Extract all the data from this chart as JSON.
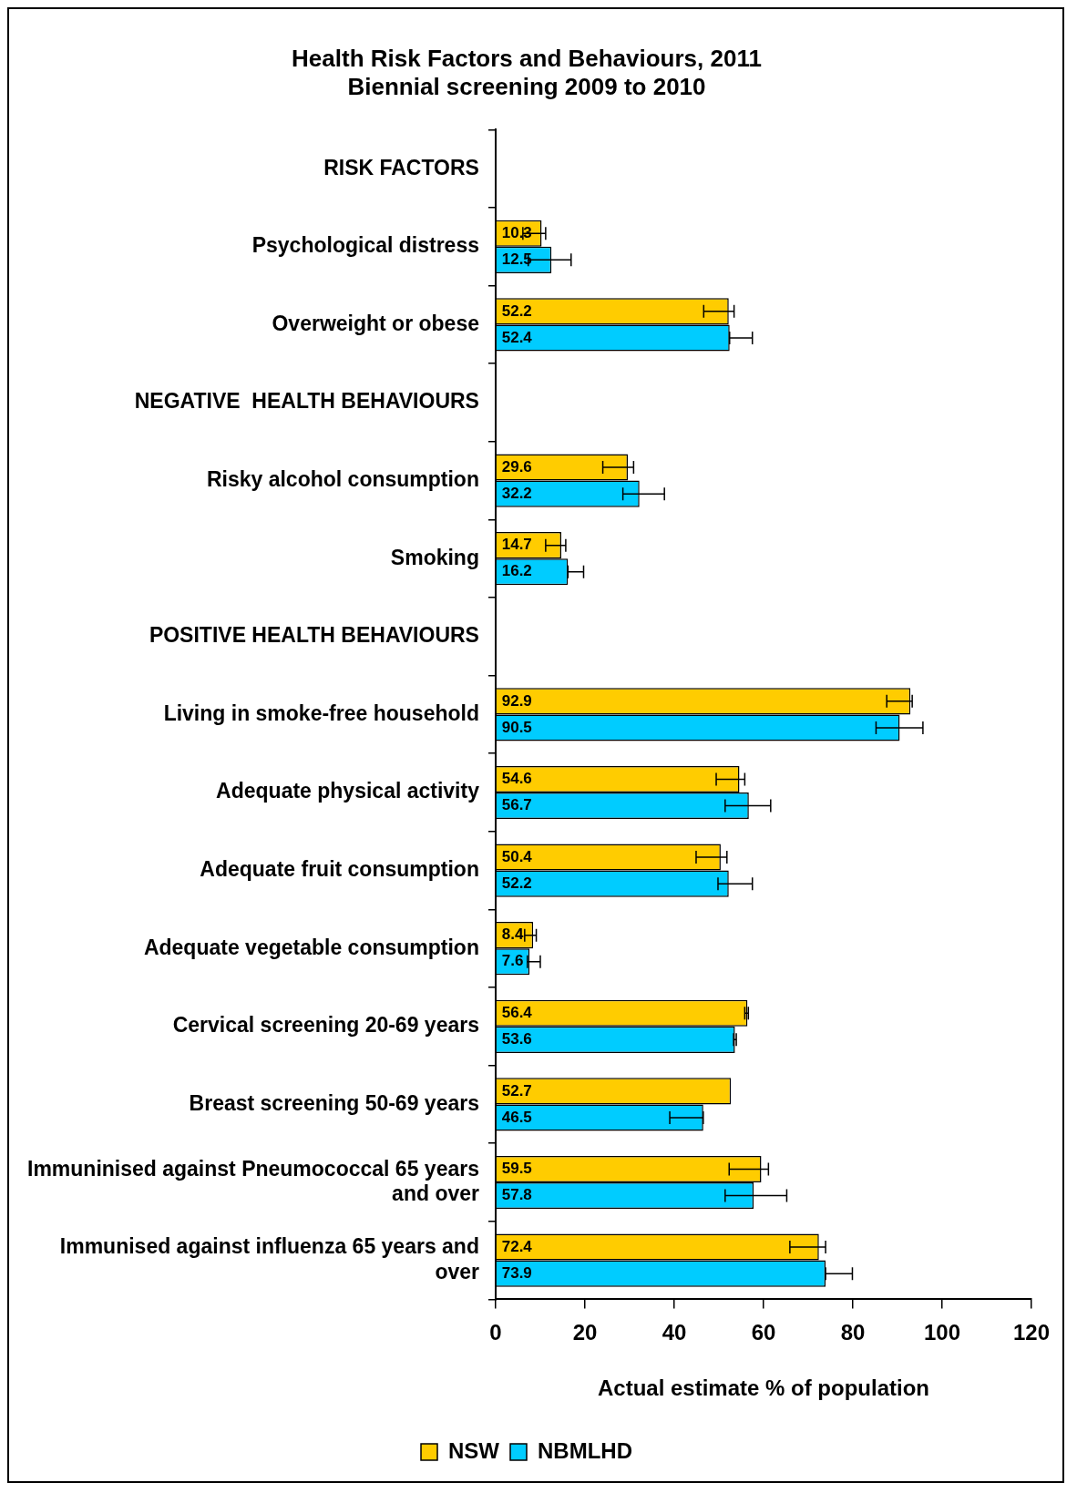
{
  "chart_data": {
    "type": "bar",
    "orientation": "horizontal",
    "title": "Health Risk Factors and Behaviours, 2011",
    "subtitle": "Biennial screening 2009 to 2010",
    "xlabel": "Actual estimate % of population",
    "categories": [
      "RISK FACTORS",
      "Psychological distress",
      "Overweight or obese",
      "NEGATIVE  HEALTH BEHAVIOURS",
      "Risky alcohol consumption",
      "Smoking",
      "POSITIVE HEALTH BEHAVIOURS",
      "Living in smoke-free household",
      "Adequate physical activity",
      "Adequate fruit consumption",
      "Adequate vegetable consumption",
      "Cervical screening 20-69 years",
      "Breast screening 50-69 years",
      "Immuninised against Pneumococcal 65 years and over",
      "Immunised against influenza 65 years and over"
    ],
    "series": [
      {
        "name": "NSW",
        "color": "#ffcc00",
        "values": [
          null,
          10.3,
          52.2,
          null,
          29.6,
          14.7,
          null,
          92.9,
          54.6,
          50.4,
          8.4,
          56.4,
          52.7,
          59.5,
          72.4
        ],
        "errors": [
          null,
          [
            6.1,
            11.2
          ],
          [
            46.6,
            53.4
          ],
          null,
          [
            24.0,
            30.9
          ],
          [
            11.2,
            15.7
          ],
          null,
          [
            87.6,
            93.3
          ],
          [
            49.4,
            55.8
          ],
          [
            44.9,
            51.8
          ],
          [
            6.5,
            9.1
          ],
          [
            55.8,
            56.6
          ],
          null,
          [
            52.3,
            61.1
          ],
          [
            65.9,
            73.9
          ]
        ]
      },
      {
        "name": "NBMLHD",
        "color": "#00ccff",
        "values": [
          null,
          12.5,
          52.4,
          null,
          32.2,
          16.2,
          null,
          90.5,
          56.7,
          52.2,
          7.6,
          53.6,
          46.5,
          57.8,
          73.9
        ],
        "errors": [
          null,
          [
            7.3,
            16.9
          ],
          [
            52.4,
            57.5
          ],
          null,
          [
            28.5,
            37.8
          ],
          [
            16.2,
            19.7
          ],
          null,
          [
            85.2,
            95.7
          ],
          [
            51.4,
            61.6
          ],
          [
            49.8,
            57.5
          ],
          [
            7.1,
            10.0
          ],
          [
            53.3,
            53.9
          ],
          [
            39.0,
            46.5
          ],
          [
            51.4,
            65.2
          ],
          [
            73.9,
            79.9
          ]
        ]
      }
    ],
    "xlim": [
      0,
      120
    ],
    "xticks": [
      0,
      20,
      40,
      60,
      80,
      100,
      120
    ],
    "grid": false,
    "legend": "bottom",
    "data_labels": true
  }
}
